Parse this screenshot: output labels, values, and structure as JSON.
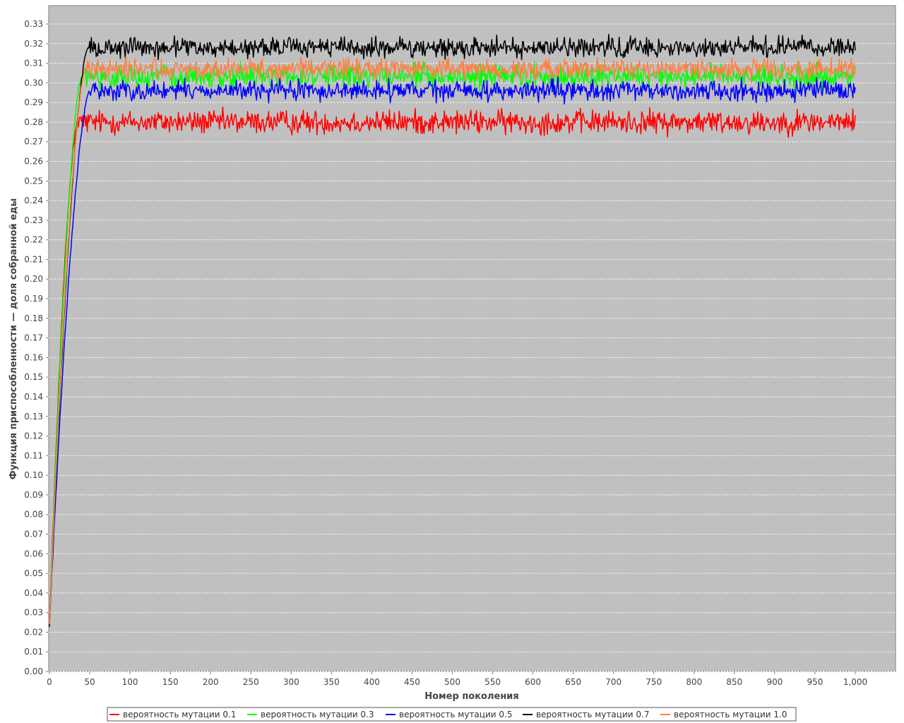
{
  "chart_data": {
    "type": "line",
    "xlabel": "Номер поколения",
    "ylabel": "Функция приспособленности — доля собранной еды",
    "xlim": [
      0,
      1050
    ],
    "ylim": [
      0,
      0.34
    ],
    "x_ticks": [
      "0",
      "50",
      "100",
      "150",
      "200",
      "250",
      "300",
      "350",
      "400",
      "450",
      "500",
      "550",
      "600",
      "650",
      "700",
      "750",
      "800",
      "850",
      "900",
      "950",
      "1,000"
    ],
    "y_ticks": [
      "0.00",
      "0.01",
      "0.02",
      "0.03",
      "0.04",
      "0.05",
      "0.06",
      "0.07",
      "0.08",
      "0.09",
      "0.10",
      "0.11",
      "0.12",
      "0.13",
      "0.14",
      "0.15",
      "0.16",
      "0.17",
      "0.18",
      "0.19",
      "0.20",
      "0.21",
      "0.22",
      "0.23",
      "0.24",
      "0.25",
      "0.26",
      "0.27",
      "0.28",
      "0.29",
      "0.30",
      "0.31",
      "0.32",
      "0.33"
    ],
    "grid": true,
    "legend_position": "bottom",
    "plot_background": "#c0c0c0",
    "x_range": [
      0,
      1000
    ],
    "series": [
      {
        "name": "вероятность мутации 0.1",
        "color": "#ff0000",
        "start": 0.024,
        "rise_end": 35,
        "plateau": 0.28,
        "noise": 0.003
      },
      {
        "name": "вероятность мутации 0.3",
        "color": "#00ff00",
        "start": 0.024,
        "rise_end": 40,
        "plateau": 0.303,
        "noise": 0.003
      },
      {
        "name": "вероятность мутации 0.5",
        "color": "#0000ff",
        "start": 0.024,
        "rise_end": 50,
        "plateau": 0.296,
        "noise": 0.0025
      },
      {
        "name": "вероятность мутации 0.7",
        "color": "#000000",
        "start": 0.024,
        "rise_end": 48,
        "plateau": 0.318,
        "noise": 0.0025
      },
      {
        "name": "вероятность мутации 1.0",
        "color": "#ff8040",
        "start": 0.024,
        "rise_end": 45,
        "plateau": 0.307,
        "noise": 0.0025
      }
    ]
  }
}
